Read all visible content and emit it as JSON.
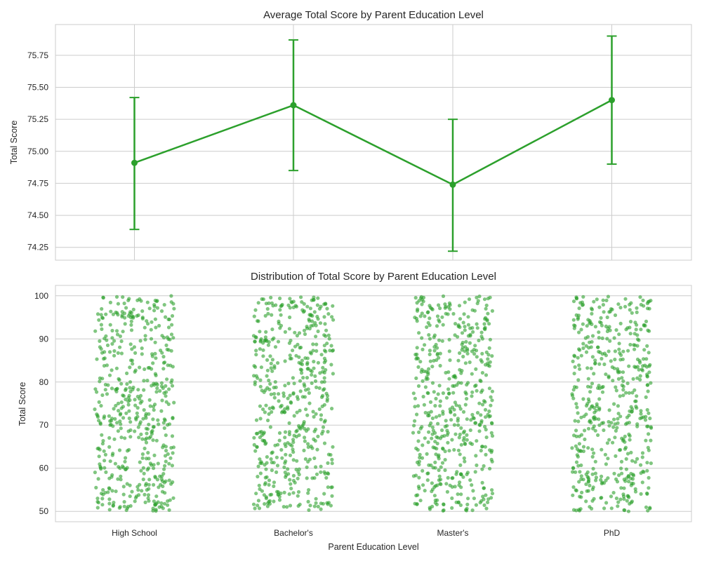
{
  "colors": {
    "accent": "#2ca02c",
    "grid": "#cccccc",
    "text": "#262626"
  },
  "chart_data": [
    {
      "type": "line",
      "title": "Average Total Score by Parent Education Level",
      "xlabel": "",
      "ylabel": "Total Score",
      "categories": [
        "High School",
        "Bachelor's",
        "Master's",
        "PhD"
      ],
      "values": [
        74.91,
        75.36,
        74.74,
        75.4
      ],
      "error_low": [
        74.39,
        74.85,
        74.22,
        74.9
      ],
      "error_high": [
        75.42,
        75.87,
        75.25,
        75.9
      ],
      "ylim": [
        74.15,
        75.99
      ],
      "yticks": [
        "74.25",
        "74.50",
        "74.75",
        "75.00",
        "75.25",
        "75.50",
        "75.75"
      ],
      "grid": true
    },
    {
      "type": "scatter",
      "title": "Distribution of Total Score by Parent Education Level",
      "xlabel": "Parent Education Level",
      "ylabel": "Total Score",
      "categories": [
        "High School",
        "Bachelor's",
        "Master's",
        "PhD"
      ],
      "points_per_category": 500,
      "y_range": [
        50,
        100
      ],
      "jitter": 0.25,
      "ylim": [
        47.6,
        102.4
      ],
      "yticks": [
        "50",
        "60",
        "70",
        "80",
        "90",
        "100"
      ],
      "grid": true
    }
  ]
}
